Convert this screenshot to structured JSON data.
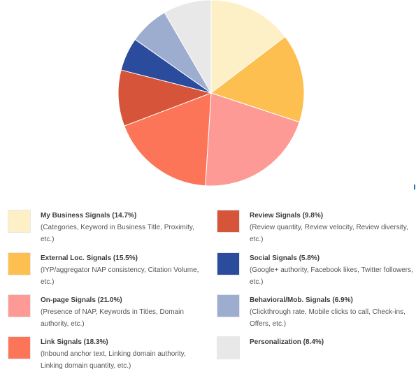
{
  "chart_data": {
    "type": "pie",
    "slices": [
      {
        "label": "My Business Signals (14.7%)",
        "desc": "(Categories, Keyword in Business Title, Proximity, etc.)",
        "value": 14.7,
        "color": "#fdefc6"
      },
      {
        "label": "External Loc. Signals (15.5%)",
        "desc": "(IYP/aggregator NAP consistency, Citation Volume, etc.)",
        "value": 15.5,
        "color": "#fdc050"
      },
      {
        "label": "On-page Signals (21.0%)",
        "desc": "(Presence of NAP, Keywords in Titles, Domain authority, etc.)",
        "value": 21.0,
        "color": "#fe9a96"
      },
      {
        "label": "Link Signals (18.3%)",
        "desc": "(Inbound anchor text, Linking domain authority, Linking domain quantity, etc.)",
        "value": 18.3,
        "color": "#fd7558"
      },
      {
        "label": "Review Signals (9.8%)",
        "desc": "(Review quantity, Review velocity, Review diversity, etc.)",
        "value": 9.8,
        "color": "#d5543a"
      },
      {
        "label": "Social Signals (5.8%)",
        "desc": "(Google+ authority, Facebook likes, Twitter followers, etc.)",
        "value": 5.8,
        "color": "#2b4b9c"
      },
      {
        "label": "Behavioral/Mob. Signals (6.9%)",
        "desc": "(Clickthrough rate, Mobile clicks to call, Check-ins, Offers, etc.)",
        "value": 6.9,
        "color": "#9cadd0"
      },
      {
        "label": "Personalization (8.4%)",
        "desc": "",
        "value": 8.4,
        "color": "#e8e8e8"
      }
    ]
  }
}
